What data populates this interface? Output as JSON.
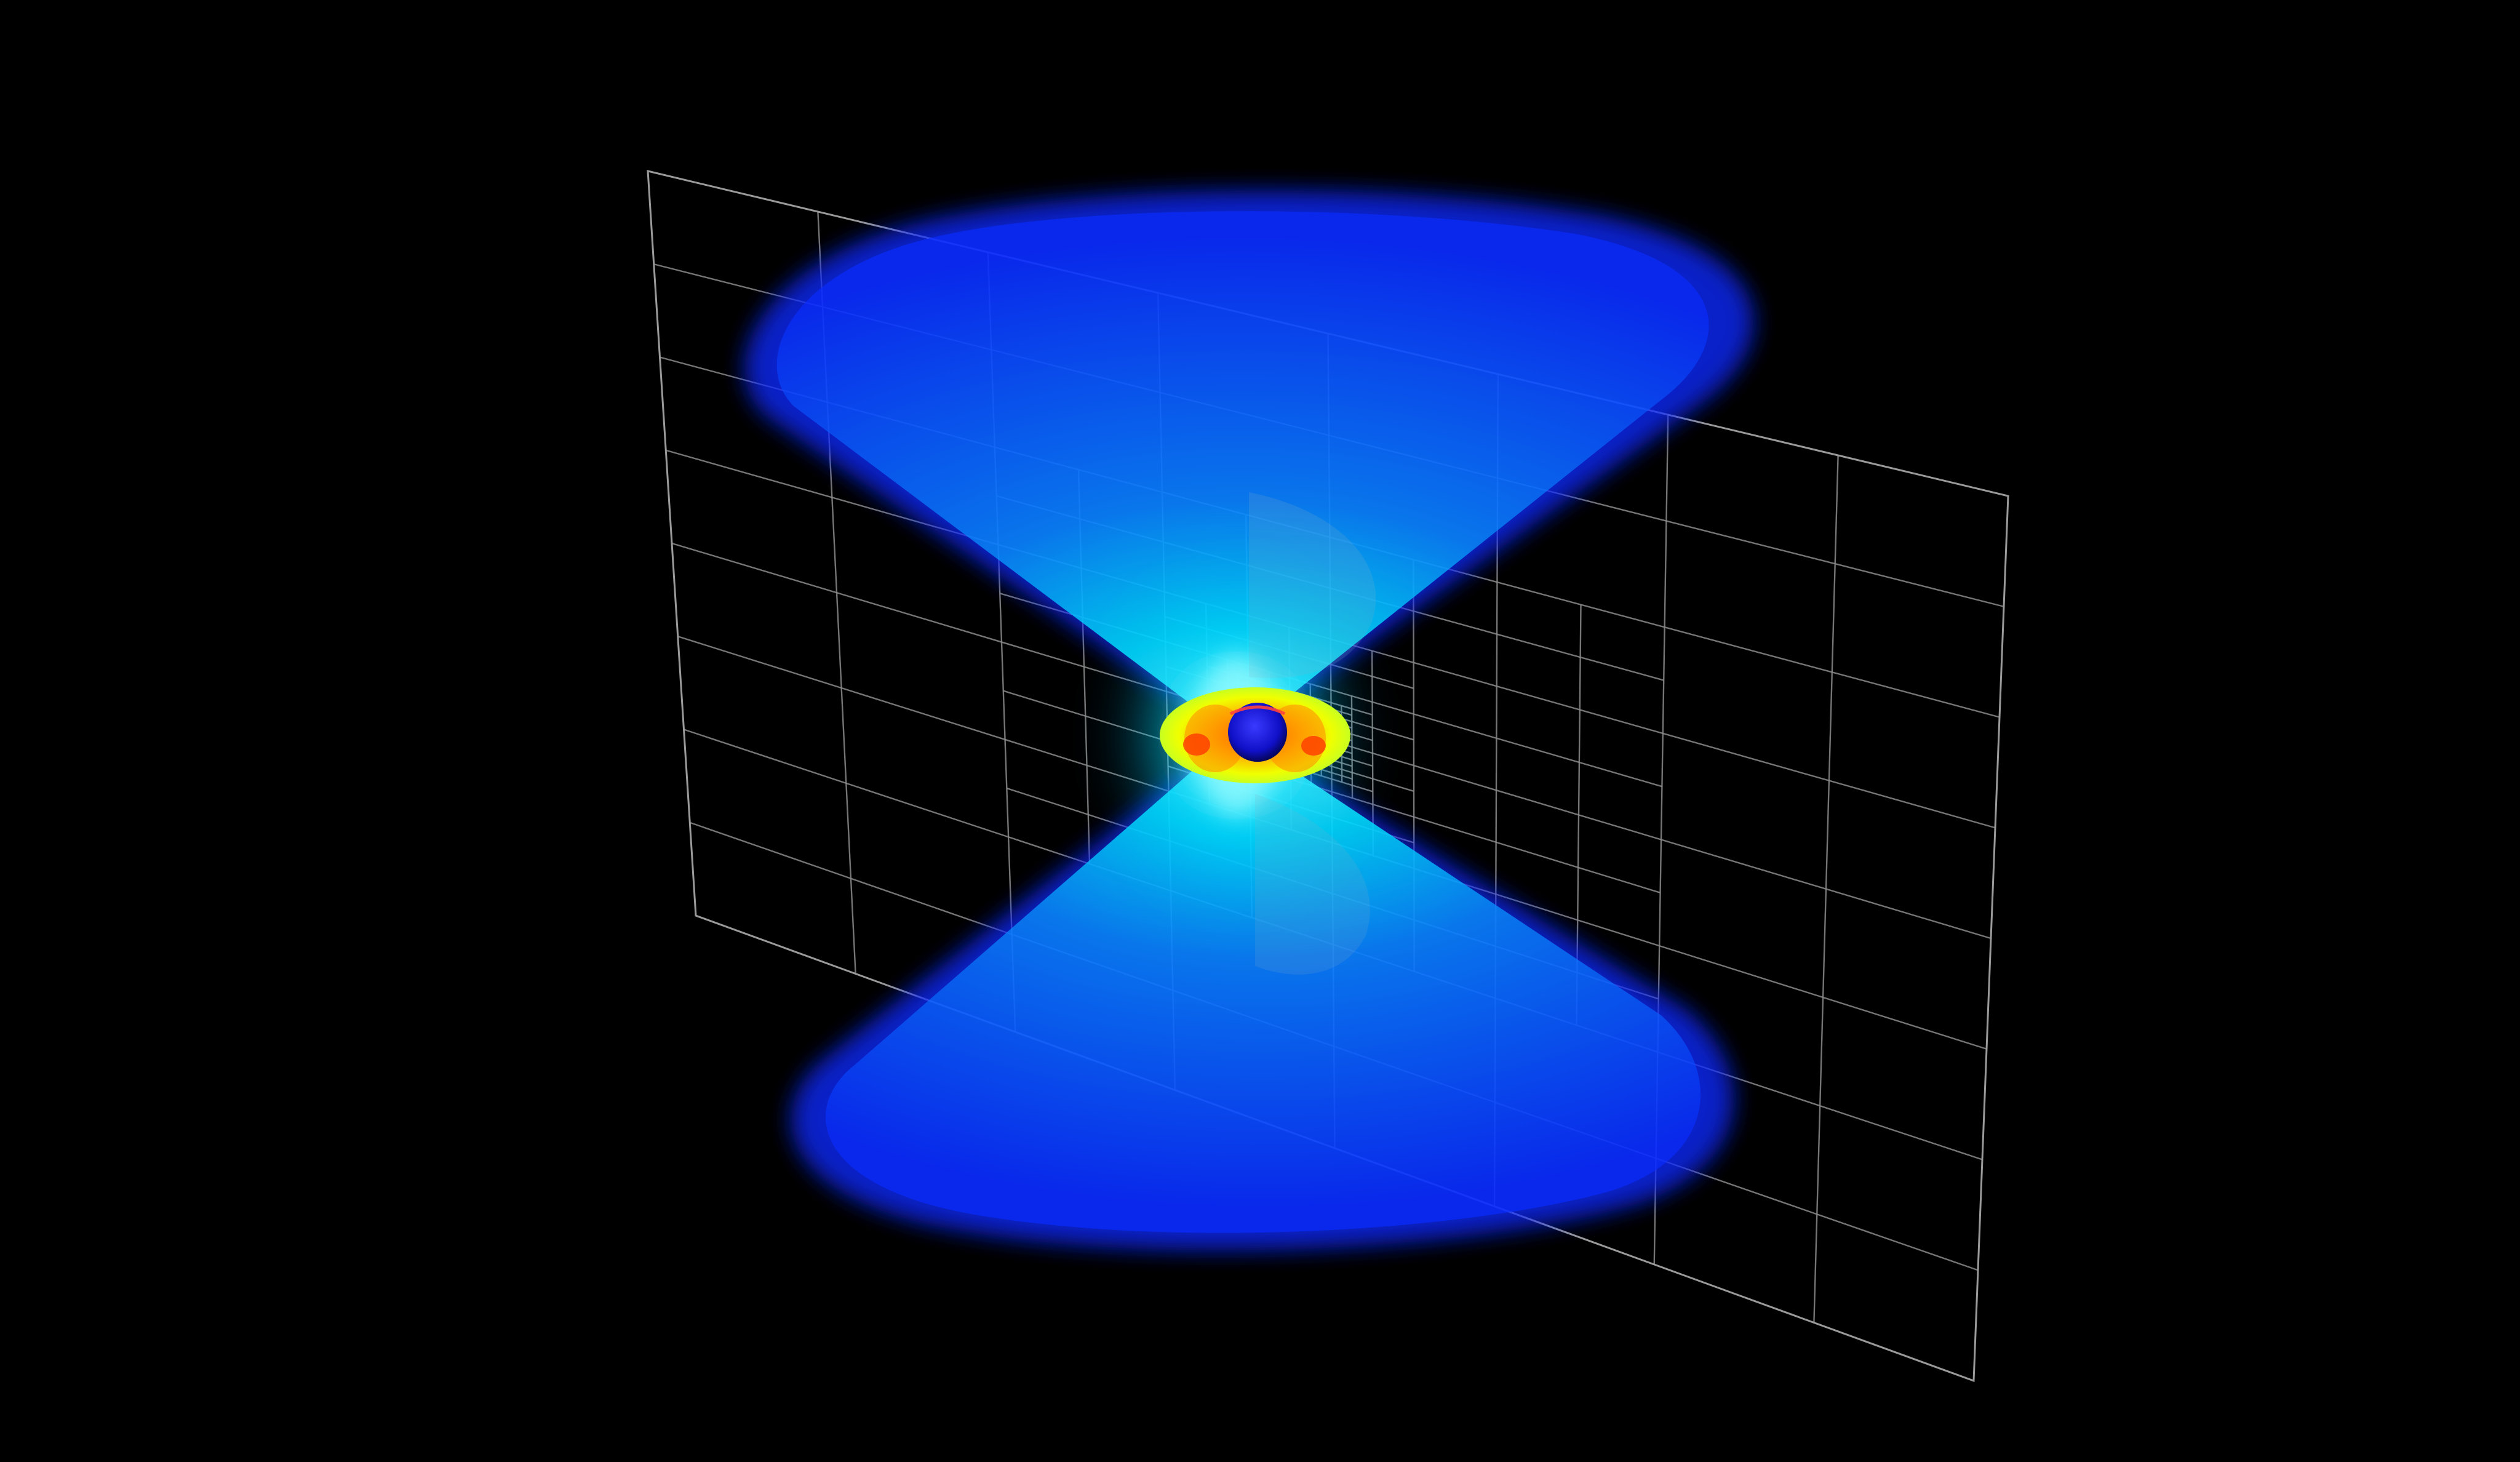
{
  "scene": {
    "background_color": "#000000",
    "grid_line_color": "#8a8a8a",
    "jet_colors": {
      "outer": "#0a2cff",
      "mid": "#0f6bff",
      "core": "#00e5ff",
      "glow": "#6fffff"
    },
    "torus_colors": {
      "outer": "#f0ff00",
      "inner": "#ffb000",
      "hot": "#ff3a00"
    },
    "core_sphere_color": "#1010c8",
    "mesh_subject": "adaptive-mesh-refinement-grid",
    "feature_subject": "bipolar-jet-outflow"
  }
}
